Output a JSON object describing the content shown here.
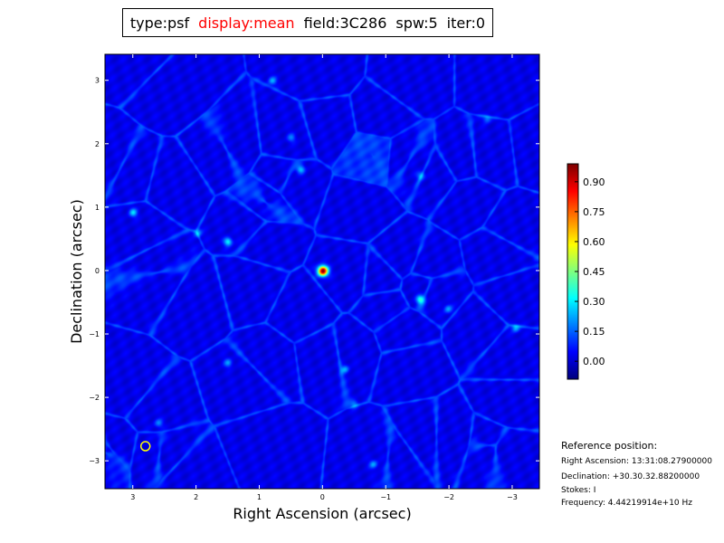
{
  "title_parts": [
    {
      "text": "type:psf",
      "color": "#000000"
    },
    {
      "text": "display:mean",
      "color": "#ff0000"
    },
    {
      "text": "field:3C286",
      "color": "#000000"
    },
    {
      "text": "spw:5",
      "color": "#000000"
    },
    {
      "text": "iter:0",
      "color": "#000000"
    }
  ],
  "chart_data": {
    "type": "heatmap",
    "colormap": "jet",
    "xlabel": "Right Ascension (arcsec)",
    "ylabel": "Declination (arcsec)",
    "xlim": [
      3.44,
      -3.43
    ],
    "ylim": [
      -3.44,
      3.41
    ],
    "xticks": [
      3,
      2,
      1,
      0,
      -1,
      -2,
      -3
    ],
    "xtick_labels": [
      "3",
      "2",
      "1",
      "0",
      "−1",
      "−2",
      "−3"
    ],
    "yticks": [
      3,
      2,
      1,
      0,
      -1,
      -2,
      -3
    ],
    "ytick_labels": [
      "3",
      "2",
      "1",
      "0",
      "−1",
      "−2",
      "−3"
    ],
    "colorbar": {
      "range": [
        -0.09,
        0.99
      ],
      "ticks": [
        0.0,
        0.15,
        0.3,
        0.45,
        0.6,
        0.75,
        0.9
      ],
      "tick_labels": [
        "0.00",
        "0.15",
        "0.30",
        "0.45",
        "0.60",
        "0.75",
        "0.90"
      ]
    },
    "peaks": [
      {
        "x": 0,
        "y": 0,
        "value": 1.0
      },
      {
        "x": 1.5,
        "y": 0.46,
        "value": 0.3
      },
      {
        "x": -1.54,
        "y": -0.45,
        "value": 0.3
      },
      {
        "x": 3.0,
        "y": 0.92,
        "value": 0.25
      },
      {
        "x": -3.05,
        "y": -0.9,
        "value": 0.22
      },
      {
        "x": 0.35,
        "y": 1.6,
        "value": 0.22
      },
      {
        "x": -0.35,
        "y": -1.55,
        "value": 0.2
      },
      {
        "x": 1.98,
        "y": 0.6,
        "value": 0.2
      },
      {
        "x": -1.98,
        "y": -0.6,
        "value": 0.2
      },
      {
        "x": 0.8,
        "y": 3.0,
        "value": 0.2
      },
      {
        "x": -0.8,
        "y": -3.05,
        "value": 0.2
      },
      {
        "x": -1.55,
        "y": 1.5,
        "value": 0.18
      },
      {
        "x": 1.5,
        "y": -1.45,
        "value": 0.18
      },
      {
        "x": 2.6,
        "y": -2.4,
        "value": 0.16
      },
      {
        "x": -2.6,
        "y": 2.4,
        "value": 0.16
      },
      {
        "x": 0.5,
        "y": 2.1,
        "value": 0.15
      },
      {
        "x": -0.5,
        "y": -2.1,
        "value": 0.15
      }
    ],
    "beam": {
      "x": 2.8,
      "y": -2.77,
      "color": "#ffff00"
    }
  },
  "reference": {
    "heading": "Reference position:",
    "ra": "Right Ascension: 13:31:08.27900000",
    "dec": "Declination: +30.30.32.88200000",
    "stokes": "Stokes: I",
    "freq": "Frequency: 4.44219914e+10 Hz"
  }
}
